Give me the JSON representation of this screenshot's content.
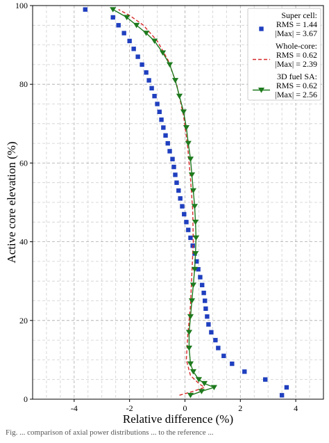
{
  "chart_data": {
    "type": "scatter",
    "title": "",
    "xlabel": "Relative difference (%)",
    "ylabel": "Active core elevation (%)",
    "xlim": [
      -5.5,
      5.0
    ],
    "ylim": [
      0,
      100
    ],
    "xticks": [
      -4,
      -2,
      0,
      2,
      4
    ],
    "yticks": [
      0,
      20,
      40,
      60,
      80,
      100
    ],
    "x_minor_step": 0.5,
    "y_minor_step": 5,
    "grid": true,
    "legend_position": "top-right",
    "series": [
      {
        "name": "Super cell:",
        "stats": [
          "RMS = 1.44",
          "|Max| = 3.67"
        ],
        "marker": "square",
        "line": "none",
        "color": "#1f3fbf",
        "points": [
          {
            "x": 3.5,
            "y": 1
          },
          {
            "x": 3.67,
            "y": 3
          },
          {
            "x": 2.9,
            "y": 5
          },
          {
            "x": 2.15,
            "y": 7
          },
          {
            "x": 1.7,
            "y": 9
          },
          {
            "x": 1.4,
            "y": 11
          },
          {
            "x": 1.2,
            "y": 13
          },
          {
            "x": 1.1,
            "y": 15
          },
          {
            "x": 0.95,
            "y": 17
          },
          {
            "x": 0.85,
            "y": 19
          },
          {
            "x": 0.8,
            "y": 21
          },
          {
            "x": 0.75,
            "y": 23
          },
          {
            "x": 0.72,
            "y": 25
          },
          {
            "x": 0.68,
            "y": 27
          },
          {
            "x": 0.62,
            "y": 29
          },
          {
            "x": 0.55,
            "y": 31
          },
          {
            "x": 0.48,
            "y": 33
          },
          {
            "x": 0.42,
            "y": 35
          },
          {
            "x": 0.35,
            "y": 37
          },
          {
            "x": 0.28,
            "y": 39
          },
          {
            "x": 0.2,
            "y": 41
          },
          {
            "x": 0.12,
            "y": 43
          },
          {
            "x": 0.05,
            "y": 45
          },
          {
            "x": -0.03,
            "y": 47
          },
          {
            "x": -0.1,
            "y": 49
          },
          {
            "x": -0.17,
            "y": 51
          },
          {
            "x": -0.23,
            "y": 53
          },
          {
            "x": -0.3,
            "y": 55
          },
          {
            "x": -0.35,
            "y": 57
          },
          {
            "x": -0.4,
            "y": 59
          },
          {
            "x": -0.45,
            "y": 61
          },
          {
            "x": -0.55,
            "y": 63
          },
          {
            "x": -0.62,
            "y": 65
          },
          {
            "x": -0.7,
            "y": 67
          },
          {
            "x": -0.78,
            "y": 69
          },
          {
            "x": -0.85,
            "y": 71
          },
          {
            "x": -0.92,
            "y": 73
          },
          {
            "x": -1.0,
            "y": 75
          },
          {
            "x": -1.1,
            "y": 77
          },
          {
            "x": -1.2,
            "y": 79
          },
          {
            "x": -1.3,
            "y": 81
          },
          {
            "x": -1.4,
            "y": 83
          },
          {
            "x": -1.55,
            "y": 85
          },
          {
            "x": -1.7,
            "y": 87
          },
          {
            "x": -1.85,
            "y": 89
          },
          {
            "x": -2.0,
            "y": 91
          },
          {
            "x": -2.2,
            "y": 93
          },
          {
            "x": -2.4,
            "y": 95
          },
          {
            "x": -2.6,
            "y": 97
          },
          {
            "x": -3.6,
            "y": 99
          }
        ]
      },
      {
        "name": "Whole-core:",
        "stats": [
          "RMS = 0.62",
          "|Max| = 2.39"
        ],
        "marker": "none",
        "line": "dashed",
        "color": "#d62728",
        "points": [
          {
            "x": -0.2,
            "y": 1
          },
          {
            "x": 0.3,
            "y": 2
          },
          {
            "x": 0.7,
            "y": 3
          },
          {
            "x": 0.5,
            "y": 4
          },
          {
            "x": 0.2,
            "y": 6
          },
          {
            "x": 0.05,
            "y": 10
          },
          {
            "x": 0.1,
            "y": 16
          },
          {
            "x": 0.2,
            "y": 24
          },
          {
            "x": 0.25,
            "y": 32
          },
          {
            "x": 0.3,
            "y": 40
          },
          {
            "x": 0.28,
            "y": 48
          },
          {
            "x": 0.2,
            "y": 56
          },
          {
            "x": 0.1,
            "y": 64
          },
          {
            "x": -0.05,
            "y": 72
          },
          {
            "x": -0.3,
            "y": 80
          },
          {
            "x": -0.6,
            "y": 86
          },
          {
            "x": -1.0,
            "y": 91
          },
          {
            "x": -1.5,
            "y": 95
          },
          {
            "x": -2.0,
            "y": 97.5
          },
          {
            "x": -2.4,
            "y": 99
          }
        ]
      },
      {
        "name": "3D fuel SA:",
        "stats": [
          "RMS = 0.62",
          "|Max| = 2.56"
        ],
        "marker": "triangle-down",
        "line": "solid",
        "color": "#1e7a1e",
        "points": [
          {
            "x": 0.2,
            "y": 1
          },
          {
            "x": 0.6,
            "y": 2
          },
          {
            "x": 1.05,
            "y": 3
          },
          {
            "x": 0.7,
            "y": 4
          },
          {
            "x": 0.5,
            "y": 5
          },
          {
            "x": 0.3,
            "y": 7
          },
          {
            "x": 0.2,
            "y": 9
          },
          {
            "x": 0.15,
            "y": 13
          },
          {
            "x": 0.15,
            "y": 17
          },
          {
            "x": 0.2,
            "y": 21
          },
          {
            "x": 0.25,
            "y": 25
          },
          {
            "x": 0.3,
            "y": 29
          },
          {
            "x": 0.35,
            "y": 33
          },
          {
            "x": 0.38,
            "y": 37
          },
          {
            "x": 0.4,
            "y": 41
          },
          {
            "x": 0.38,
            "y": 45
          },
          {
            "x": 0.35,
            "y": 49
          },
          {
            "x": 0.3,
            "y": 53
          },
          {
            "x": 0.25,
            "y": 57
          },
          {
            "x": 0.2,
            "y": 61
          },
          {
            "x": 0.12,
            "y": 65
          },
          {
            "x": 0.05,
            "y": 69
          },
          {
            "x": -0.05,
            "y": 73
          },
          {
            "x": -0.2,
            "y": 77
          },
          {
            "x": -0.35,
            "y": 81
          },
          {
            "x": -0.55,
            "y": 85
          },
          {
            "x": -0.8,
            "y": 88
          },
          {
            "x": -1.1,
            "y": 91
          },
          {
            "x": -1.4,
            "y": 93
          },
          {
            "x": -1.75,
            "y": 95
          },
          {
            "x": -2.1,
            "y": 97
          },
          {
            "x": -2.6,
            "y": 99
          }
        ]
      }
    ]
  },
  "caption": "Fig. ... comparison of axial power distributions ... to the reference ..."
}
